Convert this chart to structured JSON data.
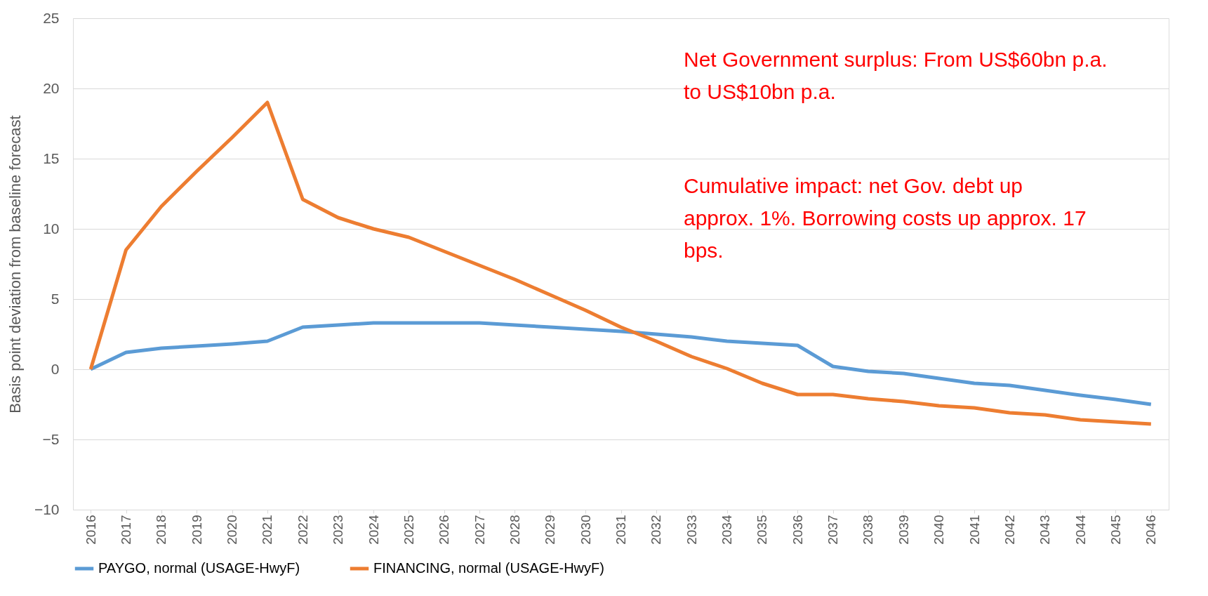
{
  "chart_data": {
    "type": "line",
    "ylabel": "Basis point deviation from baseline forecast",
    "categories": [
      "2016",
      "2017",
      "2018",
      "2019",
      "2020",
      "2021",
      "2022",
      "2023",
      "2024",
      "2025",
      "2026",
      "2027",
      "2028",
      "2029",
      "2030",
      "2031",
      "2032",
      "2033",
      "2034",
      "2035",
      "2036",
      "2037",
      "2038",
      "2039",
      "2040",
      "2041",
      "2042",
      "2043",
      "2044",
      "2045",
      "2046"
    ],
    "series": [
      {
        "name": "PAYGO, normal (USAGE-HwyF)",
        "color": "#5b9bd5",
        "values": [
          0,
          1.2,
          1.5,
          1.65,
          1.8,
          2.0,
          3.0,
          3.15,
          3.3,
          3.3,
          3.3,
          3.3,
          3.15,
          3.0,
          2.85,
          2.7,
          2.5,
          2.3,
          2.0,
          1.85,
          1.7,
          0.2,
          -0.15,
          -0.3,
          -0.65,
          -1.0,
          -1.15,
          -1.5,
          -1.85,
          -2.15,
          -2.5
        ]
      },
      {
        "name": "FINANCING, normal (USAGE-HwyF)",
        "color": "#ed7d31",
        "values": [
          0,
          8.5,
          11.6,
          14.1,
          16.5,
          19.0,
          12.1,
          10.8,
          10.0,
          9.4,
          8.4,
          7.4,
          6.4,
          5.3,
          4.2,
          3.0,
          2.0,
          0.9,
          0.05,
          -1.0,
          -1.8,
          -1.8,
          -2.1,
          -2.3,
          -2.6,
          -2.75,
          -3.1,
          -3.25,
          -3.6,
          -3.75,
          -3.9
        ]
      }
    ],
    "ylim": [
      -10,
      25
    ],
    "yticks": [
      -10,
      -5,
      0,
      5,
      10,
      15,
      20,
      25
    ],
    "grid": "y",
    "legend": "bottom",
    "marker": "none",
    "line_style": "solid",
    "annotations": [
      "Net Government surplus: From US$60bn p.a. to US$10bn p.a.",
      "Cumulative impact: net Gov. debt up approx. 1%. Borrowing costs up approx. 17 bps."
    ]
  }
}
